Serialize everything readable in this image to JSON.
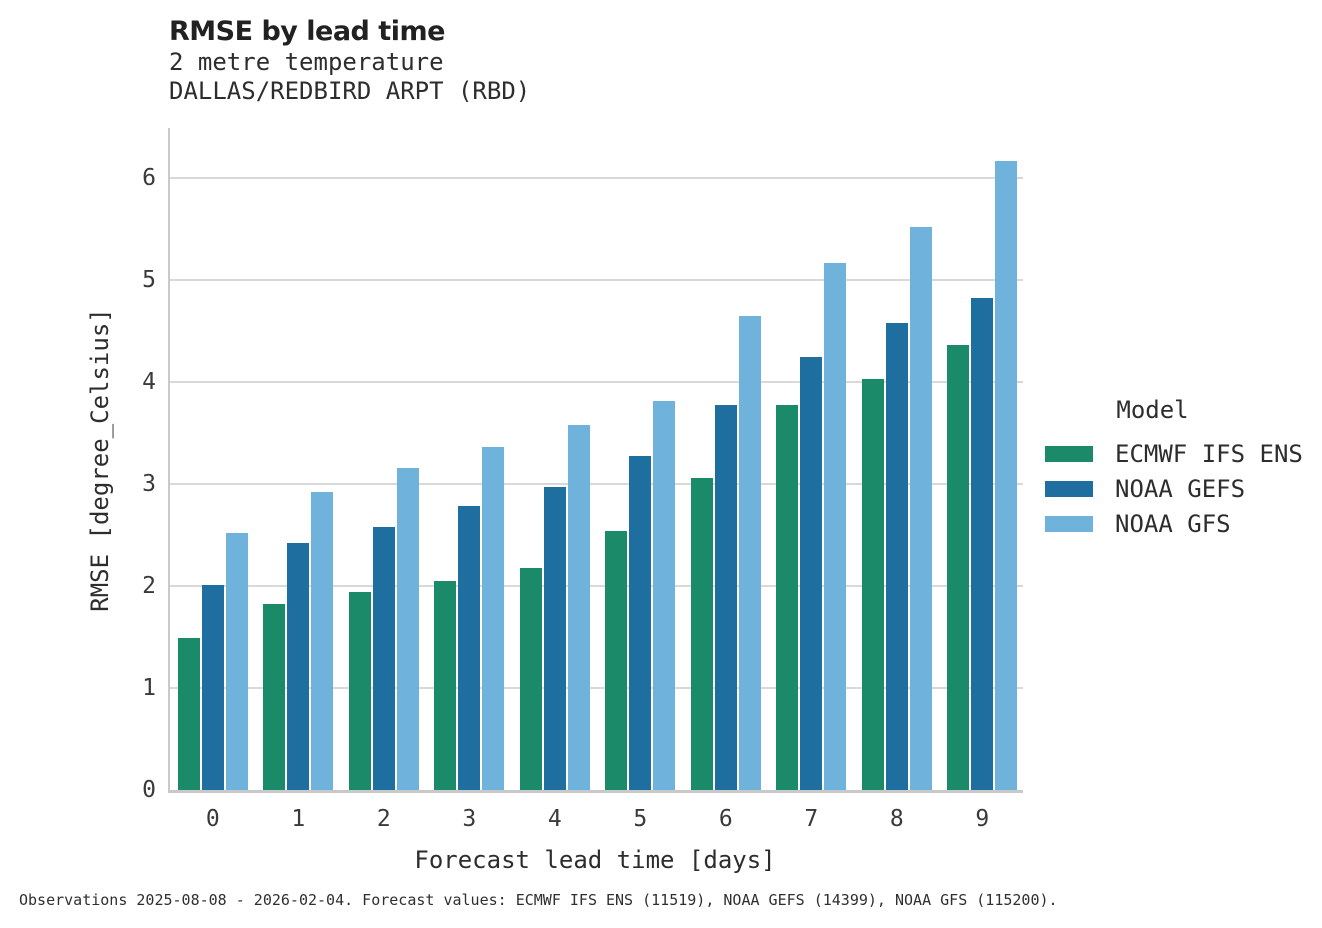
{
  "header": {
    "title": "RMSE by lead time",
    "subtitle_line1": "2 metre temperature",
    "subtitle_line2": "DALLAS/REDBIRD ARPT (RBD)"
  },
  "footer": {
    "caption": "Observations 2025-08-08 - 2026-02-04. Forecast values: ECMWF IFS ENS (11519), NOAA GEFS (14399), NOAA GFS (115200)."
  },
  "legend": {
    "title": "Model"
  },
  "chart_data": {
    "type": "bar",
    "title": "RMSE by lead time",
    "subtitle": [
      "2 metre temperature",
      "DALLAS/REDBIRD ARPT (RBD)"
    ],
    "categories": [
      "0",
      "1",
      "2",
      "3",
      "4",
      "5",
      "6",
      "7",
      "8",
      "9"
    ],
    "series": [
      {
        "name": "ECMWF IFS ENS",
        "color": "#1a8a68",
        "values": [
          1.49,
          1.82,
          1.94,
          2.05,
          2.18,
          2.54,
          3.06,
          3.77,
          4.03,
          4.36
        ]
      },
      {
        "name": "NOAA GEFS",
        "color": "#1e6e9f",
        "values": [
          2.01,
          2.42,
          2.58,
          2.78,
          2.97,
          3.27,
          3.77,
          4.25,
          4.58,
          4.82
        ]
      },
      {
        "name": "NOAA GFS",
        "color": "#6fb2dc",
        "values": [
          2.52,
          2.92,
          3.16,
          3.36,
          3.58,
          3.81,
          4.65,
          5.17,
          5.52,
          6.17
        ]
      }
    ],
    "xlabel": "Forecast lead time [days]",
    "ylabel": "RMSE [degree_Celsius]",
    "ylim": [
      0,
      6.52
    ],
    "yticks": [
      0,
      1,
      2,
      3,
      4,
      5,
      6
    ],
    "grid": true,
    "legend_title": "Model",
    "legend_position": "right",
    "footnote": "Observations 2025-08-08 - 2026-02-04. Forecast values: ECMWF IFS ENS (11519), NOAA GEFS (14399), NOAA GFS (115200)."
  }
}
